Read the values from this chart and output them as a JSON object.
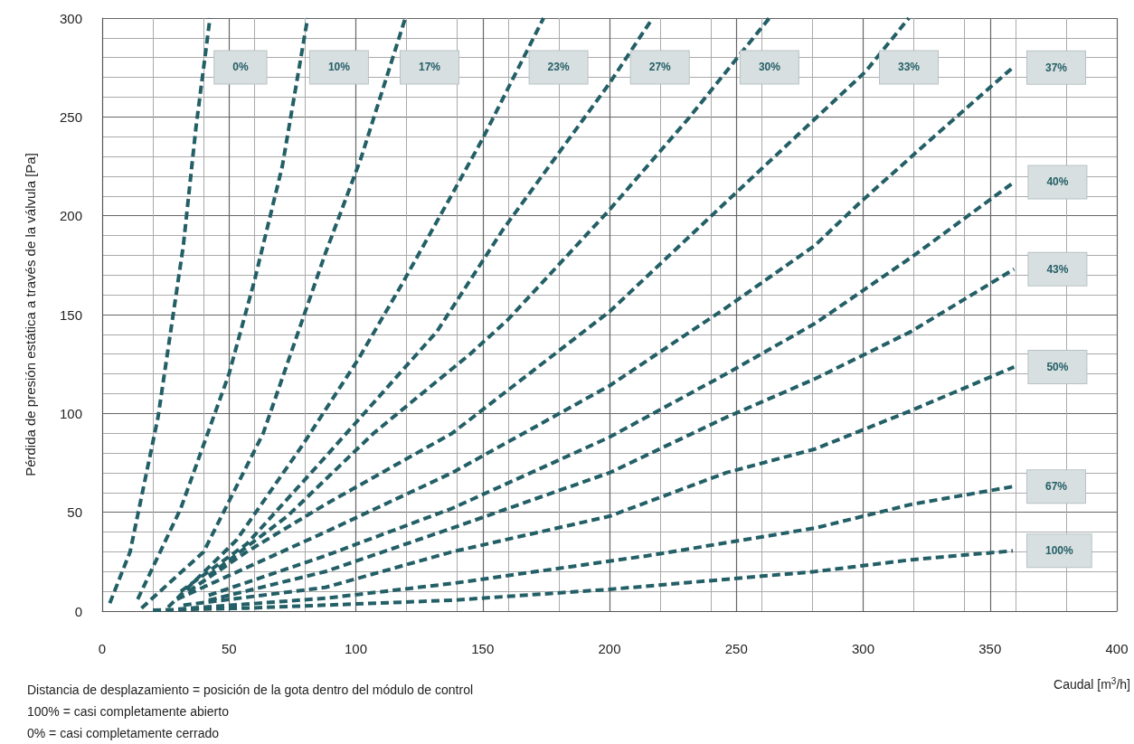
{
  "chart_data": {
    "type": "line",
    "xlabel": "Caudal [m$^{3}$/h]",
    "ylabel": "Pérdida de presión estática a través de la válvula [Pa]",
    "annotations": [
      "Distancia de desplazamiento = posición de la gota dentro del módulo de control",
      "100% = casi completamente abierto",
      "0% = casi completamente cerrado"
    ],
    "xlim": [
      0,
      400
    ],
    "xticks": [
      0,
      50,
      100,
      150,
      200,
      250,
      300,
      350,
      400
    ],
    "ylim": [
      0,
      300
    ],
    "yticks": [
      0,
      50,
      100,
      150,
      200,
      250,
      300
    ],
    "grid": true,
    "legend": false,
    "marker": "none",
    "line_style": "dashed",
    "series": [
      {
        "name": "0%",
        "color": "#235f66",
        "x": [
          3,
          11,
          22,
          32,
          37,
          42.5
        ],
        "values": [
          4,
          30,
          98,
          185,
          245,
          300
        ]
      },
      {
        "name": "10%",
        "color": "#235f66",
        "x": [
          14,
          31,
          50,
          60,
          71,
          81
        ],
        "values": [
          6,
          52,
          120,
          167,
          225,
          300
        ]
      },
      {
        "name": "17%",
        "color": "#235f66",
        "x": [
          15.5,
          40,
          63.5,
          88,
          102,
          119.5
        ],
        "values": [
          1.5,
          30,
          90,
          181,
          229,
          300
        ]
      },
      {
        "name": "23%",
        "color": "#235f66",
        "x": [
          26,
          53,
          79,
          101,
          118,
          138,
          150,
          174
        ],
        "values": [
          2,
          36,
          84,
          127.5,
          165,
          211,
          239,
          300
        ]
      },
      {
        "name": "27%",
        "color": "#235f66",
        "x": [
          31,
          57,
          88,
          132,
          158,
          200,
          217
        ],
        "values": [
          10,
          34,
          78,
          141.5,
          193,
          267,
          300
        ]
      },
      {
        "name": "30%",
        "color": "#235f66",
        "x": [
          42,
          73,
          107,
          145,
          160,
          200,
          231,
          263
        ],
        "values": [
          18,
          48,
          90,
          130,
          147.5,
          203,
          249,
          300
        ]
      },
      {
        "name": "33%",
        "color": "#235f66",
        "x": [
          34,
          57,
          88,
          138,
          200,
          246,
          281,
          301,
          318
        ],
        "values": [
          10,
          30,
          54,
          90,
          151.5,
          207,
          249,
          273,
          300
        ]
      },
      {
        "name": "37%",
        "color": "#235f66",
        "x": [
          29.5,
          50,
          88,
          138,
          200,
          246,
          281,
          299,
          327,
          359
        ],
        "values": [
          6,
          18,
          40,
          70,
          114,
          153.5,
          185,
          207,
          239,
          275
        ]
      },
      {
        "name": "40%",
        "color": "#235f66",
        "x": [
          42,
          88,
          138,
          200,
          246,
          281,
          319,
          359.5
        ],
        "values": [
          8,
          28,
          52,
          88,
          120,
          145.5,
          179,
          217
        ]
      },
      {
        "name": "43%",
        "color": "#235f66",
        "x": [
          42,
          88,
          138,
          200,
          246,
          281,
          319,
          359.5
        ],
        "values": [
          5.5,
          20,
          42,
          70,
          98,
          117.5,
          141.5,
          173
        ]
      },
      {
        "name": "50%",
        "color": "#235f66",
        "x": [
          32,
          88,
          138,
          200,
          246,
          281,
          319,
          359.5
        ],
        "values": [
          3,
          12,
          30,
          48,
          70,
          82,
          101.5,
          123.5
        ]
      },
      {
        "name": "67%",
        "color": "#235f66",
        "x": [
          30,
          88,
          138,
          215,
          281,
          319,
          359
        ],
        "values": [
          1,
          6.5,
          14,
          28,
          42,
          54,
          63
        ]
      },
      {
        "name": "100%",
        "color": "#235f66",
        "x": [
          20,
          57,
          138,
          200,
          281,
          319,
          359
        ],
        "values": [
          0.5,
          1.5,
          5.5,
          11,
          20,
          26,
          30.5
        ]
      }
    ]
  }
}
